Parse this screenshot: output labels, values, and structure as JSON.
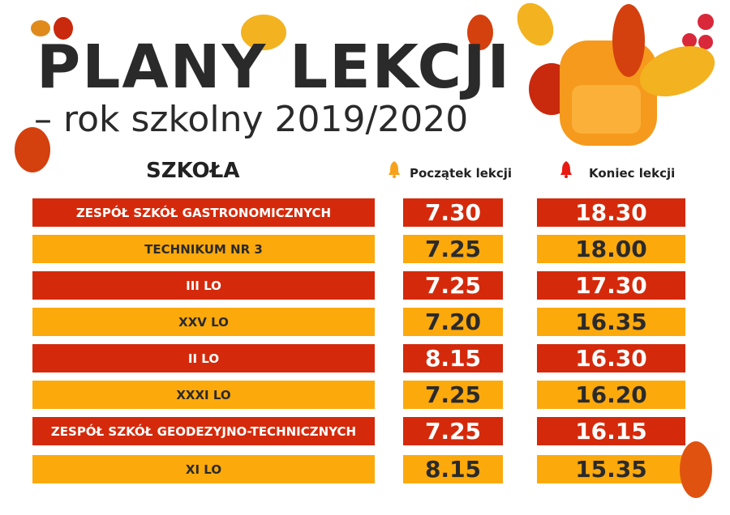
{
  "title": "PLANY LEKCJI",
  "subtitle": "– rok szkolny 2019/2020",
  "headers": {
    "school": "SZKOŁA",
    "start": "Początek lekcji",
    "end": "Koniec lekcji"
  },
  "icons": {
    "start": "bell-icon",
    "end": "bell-icon"
  },
  "colors": {
    "red": "#d42a0b",
    "orange": "#fca90c",
    "start_bell": "#f7a21b",
    "end_bell": "#e81a12"
  },
  "rows": [
    {
      "school": "ZESPÓŁ SZKÓŁ GASTRONOMICZNYCH",
      "start": "7.30",
      "end": "18.30"
    },
    {
      "school": "TECHNIKUM NR 3",
      "start": "7.25",
      "end": "18.00"
    },
    {
      "school": "III LO",
      "start": "7.25",
      "end": "17.30"
    },
    {
      "school": "XXV LO",
      "start": "7.20",
      "end": "16.35"
    },
    {
      "school": "II LO",
      "start": "8.15",
      "end": "16.30"
    },
    {
      "school": "XXXI LO",
      "start": "7.25",
      "end": "16.20"
    },
    {
      "school": "ZESPÓŁ SZKÓŁ GEODEZYJNO-TECHNICZNYCH",
      "start": "7.25",
      "end": "16.15"
    },
    {
      "school": "XI LO",
      "start": "8.15",
      "end": "15.35"
    }
  ]
}
